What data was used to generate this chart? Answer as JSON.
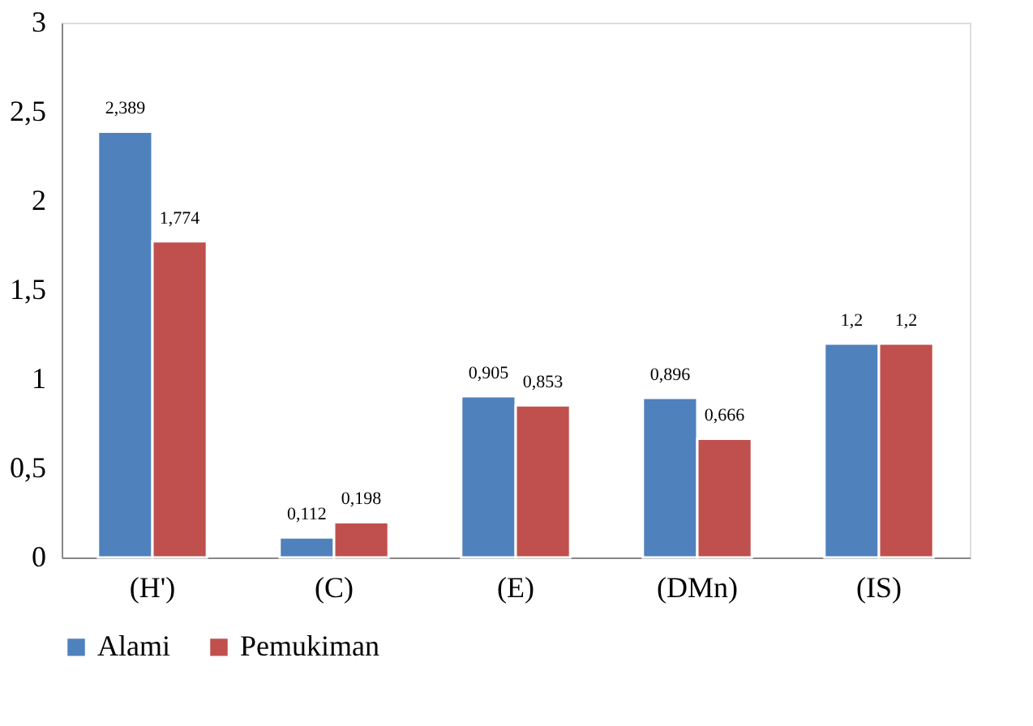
{
  "chart_data": {
    "type": "bar",
    "categories": [
      "(H')",
      "(C)",
      "(E)",
      "(DMn)",
      "(IS)"
    ],
    "series": [
      {
        "name": "Alami",
        "color": "#4f81bd",
        "values": [
          2.389,
          0.112,
          0.905,
          0.896,
          1.2
        ],
        "value_labels": [
          "2,389",
          "0,112",
          "0,905",
          "0,896",
          "1,2"
        ]
      },
      {
        "name": "Pemukiman",
        "color": "#c0504d",
        "values": [
          1.774,
          0.198,
          0.853,
          0.666,
          1.2
        ],
        "value_labels": [
          "1,774",
          "0,198",
          "0,853",
          "0,666",
          "1,2"
        ]
      }
    ],
    "ylim": [
      0,
      3
    ],
    "yticks": [
      0,
      {
        "value": 0.5,
        "label": "0,5"
      },
      1,
      {
        "value": 1.5,
        "label": "1,5"
      },
      2,
      {
        "value": 2.5,
        "label": "2,5"
      },
      3
    ],
    "grid": false,
    "legend": "bottom"
  }
}
